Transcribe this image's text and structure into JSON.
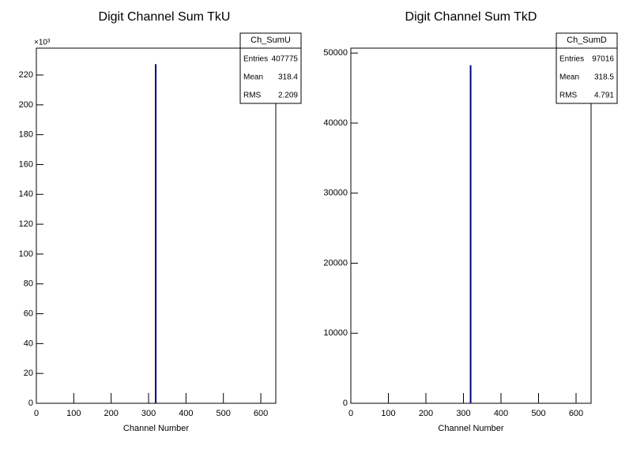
{
  "chart_data": [
    {
      "type": "histogram",
      "title": "Digit Channel Sum TkU",
      "x_label": "Channel Number",
      "y_multiplier": "×10³",
      "color": "#000080",
      "bins": [
        318,
        320
      ],
      "values": [
        227
      ],
      "xlim": [
        0,
        640
      ],
      "xticks": [
        0,
        100,
        200,
        300,
        400,
        500,
        600
      ],
      "ylim": [
        0,
        238
      ],
      "yticks": [
        0,
        20,
        40,
        60,
        80,
        100,
        120,
        140,
        160,
        180,
        200,
        220
      ],
      "stats": {
        "name": "Ch_SumU",
        "rows": [
          [
            "Entries",
            407775
          ],
          [
            "Mean",
            318.4
          ],
          [
            "RMS",
            2.209
          ]
        ]
      }
    },
    {
      "type": "histogram",
      "title": "Digit Channel Sum TkD",
      "x_label": "Channel Number",
      "color": "#000080",
      "bins": [
        318,
        320
      ],
      "values": [
        48200
      ],
      "xlim": [
        0,
        640
      ],
      "xticks": [
        0,
        100,
        200,
        300,
        400,
        500,
        600
      ],
      "ylim": [
        0,
        50700
      ],
      "yticks": [
        0,
        10000,
        20000,
        30000,
        40000,
        50000
      ],
      "stats": {
        "name": "Ch_SumD",
        "rows": [
          [
            "Entries",
            97016
          ],
          [
            "Mean",
            318.5
          ],
          [
            "RMS",
            4.791
          ]
        ]
      }
    }
  ]
}
